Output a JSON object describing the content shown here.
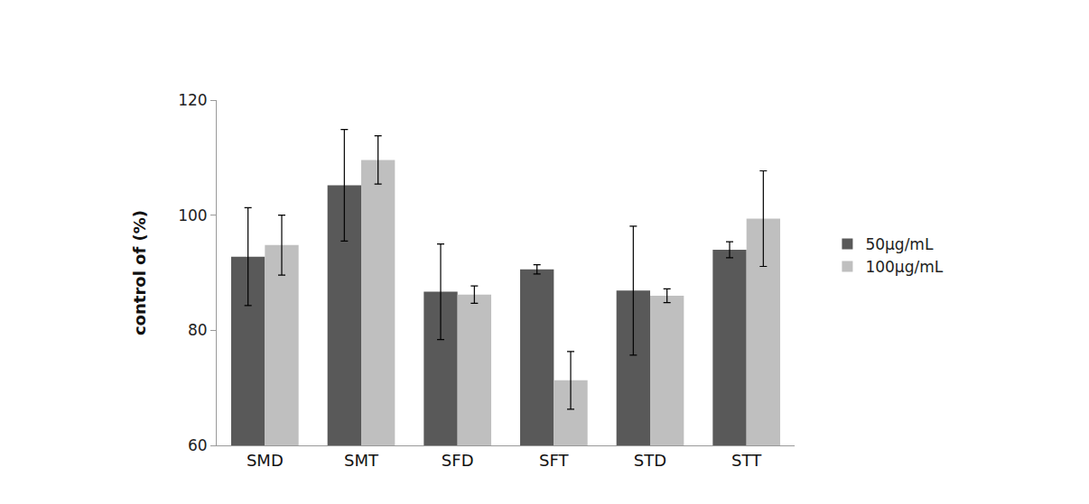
{
  "chart_data": {
    "type": "bar",
    "y_label": "control of (%)",
    "categories": [
      "SMD",
      "SMT",
      "SFD",
      "SFT",
      "STD",
      "STT"
    ],
    "series": [
      {
        "name": "50μg/mL",
        "color": "#595959",
        "values": [
          92.8,
          105.2,
          86.7,
          90.6,
          86.9,
          94.0
        ],
        "errors": [
          8.5,
          9.7,
          8.3,
          0.8,
          11.2,
          1.4
        ]
      },
      {
        "name": "100μg/mL",
        "color": "#bfbfbf",
        "values": [
          94.8,
          109.6,
          86.2,
          71.3,
          86.0,
          99.4
        ],
        "errors": [
          5.2,
          4.2,
          1.5,
          5.0,
          1.2,
          8.3
        ]
      }
    ],
    "ylim": [
      60,
      120
    ],
    "yticks": [
      60,
      80,
      100,
      120
    ],
    "grid": false,
    "legend": "right"
  }
}
